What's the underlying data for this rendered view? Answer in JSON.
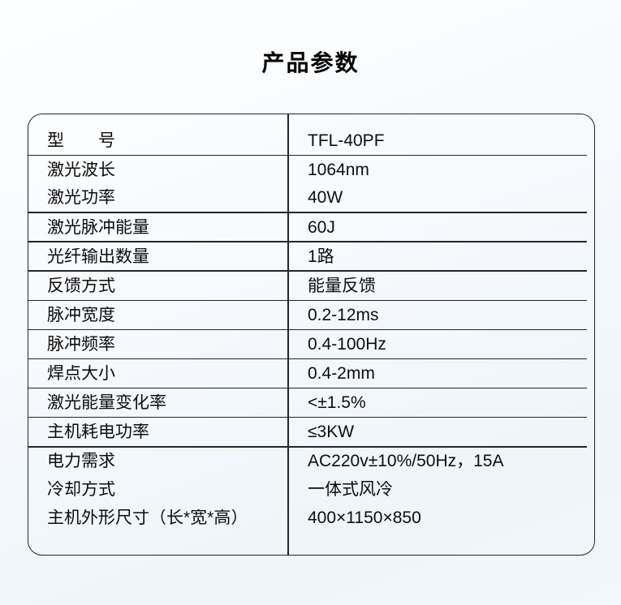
{
  "page": {
    "title": "产品参数"
  },
  "colors": {
    "text": "#0d0d0d",
    "table_border": "#23272b",
    "background_top": "#fdfeff",
    "background_bottom": "#eef5fb"
  },
  "table": {
    "columns": [
      "parameter",
      "value"
    ],
    "groups": [
      {
        "rows": [
          {
            "label": "型　　号",
            "value": "TFL-40PF"
          }
        ]
      },
      {
        "rows": [
          {
            "label": "激光波长",
            "value": "1064nm"
          },
          {
            "label": "激光功率",
            "value": "40W"
          }
        ]
      },
      {
        "rows": [
          {
            "label": "激光脉冲能量",
            "value": "60J"
          }
        ]
      },
      {
        "rows": [
          {
            "label": "光纤输出数量",
            "value": "1路"
          }
        ]
      },
      {
        "rows": [
          {
            "label": "反馈方式",
            "value": "能量反馈"
          }
        ]
      },
      {
        "rows": [
          {
            "label": "脉冲宽度",
            "value": "0.2-12ms"
          }
        ]
      },
      {
        "rows": [
          {
            "label": "脉冲频率",
            "value": "0.4-100Hz"
          }
        ]
      },
      {
        "rows": [
          {
            "label": "焊点大小",
            "value": "0.4-2mm"
          }
        ]
      },
      {
        "rows": [
          {
            "label": "激光能量变化率",
            "value": "<±1.5%"
          }
        ]
      },
      {
        "rows": [
          {
            "label": "主机耗电功率",
            "value": "≤3KW"
          }
        ]
      },
      {
        "rows": [
          {
            "label": "电力需求",
            "value": "AC220v±10%/50Hz，15A"
          },
          {
            "label": "冷却方式",
            "value": "一体式风冷"
          },
          {
            "label": "主机外形尺寸（长*宽*高）",
            "value": "400×1150×850"
          }
        ]
      }
    ]
  }
}
